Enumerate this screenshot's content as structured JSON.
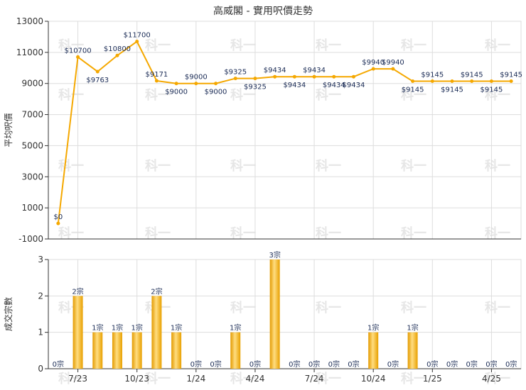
{
  "chart_title": "高威閣 - 實用呎價走勢",
  "colors": {
    "line": "#f5a800",
    "bar_dark": "#e39a00",
    "bar_light": "#ffdd80",
    "grid": "#dddddd",
    "axis": "#333333"
  },
  "watermark_text": "科一",
  "x_ticks": [
    "7/23",
    "10/23",
    "1/24",
    "4/24",
    "7/24",
    "10/24",
    "1/25",
    "4/25"
  ],
  "chart_data": [
    {
      "type": "line",
      "ylabel": "平均呎價",
      "ylim": [
        -1000,
        13000
      ],
      "yticks": [
        -1000,
        1000,
        3000,
        5000,
        7000,
        9000,
        11000,
        13000
      ],
      "grid": true,
      "months": 24,
      "values": [
        0,
        10700,
        9763,
        10800,
        11700,
        9171,
        9000,
        9000,
        9000,
        9325,
        9325,
        9434,
        9434,
        9434,
        9434,
        9434,
        9940,
        9940,
        9145,
        9145,
        9145,
        9145,
        9145,
        9145
      ],
      "labels": [
        "$0",
        "$10700",
        "$9763",
        "$10800",
        "$11700",
        "$9171",
        "$9000",
        "$9000",
        "$9000",
        "$9325",
        "$9325",
        "$9434",
        "$9434",
        "$9434",
        "$9434",
        "$9434",
        "$9940",
        "$9940",
        "$9145",
        "$9145",
        "$9145",
        "$9145",
        "$9145",
        "$9145"
      ]
    },
    {
      "type": "bar",
      "ylabel": "成交宗數",
      "ylim": [
        0,
        3
      ],
      "yticks": [
        0,
        1,
        2,
        3
      ],
      "grid": true,
      "values": [
        0,
        2,
        1,
        1,
        1,
        2,
        1,
        0,
        0,
        1,
        0,
        3,
        0,
        0,
        0,
        0,
        1,
        0,
        1,
        0,
        0,
        0,
        0,
        0
      ],
      "labels": [
        "0宗",
        "2宗",
        "1宗",
        "1宗",
        "1宗",
        "2宗",
        "1宗",
        "0宗",
        "0宗",
        "1宗",
        "0宗",
        "3宗",
        "0宗",
        "0宗",
        "0宗",
        "0宗",
        "1宗",
        "0宗",
        "1宗",
        "0宗",
        "0宗",
        "0宗",
        "0宗",
        "0宗"
      ]
    }
  ]
}
